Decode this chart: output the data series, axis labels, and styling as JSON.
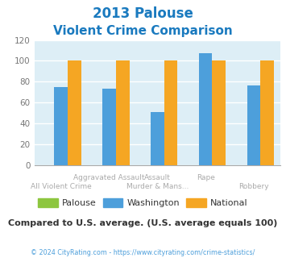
{
  "title_line1": "2013 Palouse",
  "title_line2": "Violent Crime Comparison",
  "title_color": "#1a7abf",
  "categories": [
    "All Violent Crime",
    "Aggravated Assault",
    "Murder & Mans...",
    "Rape",
    "Robbery"
  ],
  "top_labels": [
    "",
    "Aggravated Assault",
    "Assault",
    "Rape",
    ""
  ],
  "bottom_labels": [
    "All Violent Crime",
    "",
    "Murder & Mans...",
    "",
    "Robbery"
  ],
  "palouse_values": [
    0,
    0,
    0,
    0,
    0
  ],
  "washington_values": [
    75,
    73,
    51,
    107,
    76
  ],
  "national_values": [
    100,
    100,
    100,
    100,
    100
  ],
  "palouse_color": "#8dc63f",
  "washington_color": "#4d9fdb",
  "national_color": "#f5a623",
  "bg_color": "#ddeef6",
  "ylim": [
    0,
    120
  ],
  "yticks": [
    0,
    20,
    40,
    60,
    80,
    100,
    120
  ],
  "grid_color": "#ffffff",
  "footer_text": "Compared to U.S. average. (U.S. average equals 100)",
  "footer_color": "#333333",
  "copyright_text": "© 2024 CityRating.com - https://www.cityrating.com/crime-statistics/",
  "copyright_color": "#4d9fdb",
  "legend_labels": [
    "Palouse",
    "Washington",
    "National"
  ],
  "bar_width": 0.28
}
